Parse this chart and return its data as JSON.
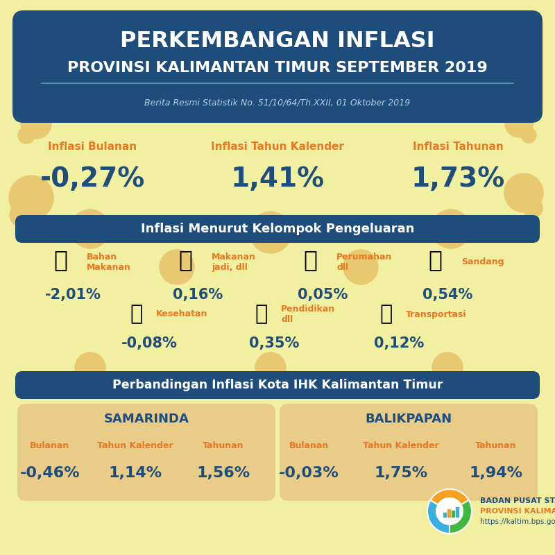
{
  "bg_color": "#f0f0a0",
  "header_bg": "#1e4d7b",
  "orange_color": "#e87722",
  "dark_blue": "#1e4d7b",
  "tan_box": "#e8cc88",
  "circle_color": "#e8c870",
  "header_title1": "PERKEMBANGAN INFLASI",
  "header_title2": "PROVINSI KALIMANTAN TIMUR SEPTEMBER 2019",
  "header_subtitle": "Berita Resmi Statistik No. 51/10/64/Th.XXII, 01 Oktober 2019",
  "inflasi_labels": [
    "Inflasi Bulanan",
    "Inflasi Tahun Kalender",
    "Inflasi Tahunan"
  ],
  "inflasi_values": [
    "-0,27%",
    "1,41%",
    "1,73%"
  ],
  "section1_title": "Inflasi Menurut Kelompok Pengeluaran",
  "pengeluaran_labels": [
    "Bahan\nMakanan",
    "Makanan\njadi, dll",
    "Perumahan\ndll",
    "Sandang"
  ],
  "pengeluaran_values": [
    "-2,01%",
    "0,16%",
    "0,05%",
    "0,54%"
  ],
  "pengeluaran_labels2": [
    "Kesehatan",
    "Pendidikan\ndll",
    "Transportasi"
  ],
  "pengeluaran_values2": [
    "-0,08%",
    "0,35%",
    "0,12%"
  ],
  "section2_title": "Perbandingan Inflasi Kota IHK Kalimantan Timur",
  "samarinda_title": "SAMARINDA",
  "samarinda_labels": [
    "Bulanan",
    "Tahun Kalender",
    "Tahunan"
  ],
  "samarinda_values": [
    "-0,46%",
    "1,14%",
    "1,56%"
  ],
  "balikpapan_title": "BALIKPAPAN",
  "balikpapan_labels": [
    "Bulanan",
    "Tahun Kalender",
    "Tahunan"
  ],
  "balikpapan_values": [
    "-0,03%",
    "1,75%",
    "1,94%"
  ],
  "bps_name": "BADAN PUSAT STATISTIK",
  "bps_province": "PROVINSI KALIMANTAN TIMUR",
  "bps_url": "https://kaltim.bps.go.id",
  "icons_row1": [
    "🍅",
    "🍔",
    "🏠",
    "👗"
  ],
  "icons_row2": [
    "🚑",
    "📖",
    "🚌"
  ]
}
